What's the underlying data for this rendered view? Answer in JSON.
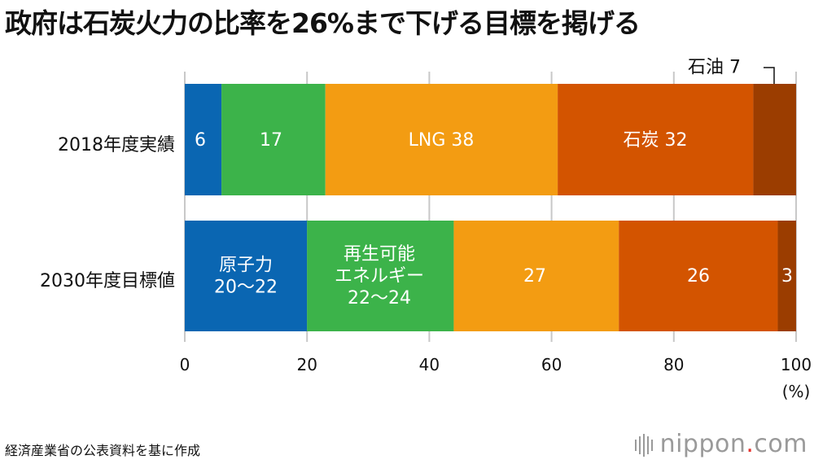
{
  "title": "政府は石炭火力の比率を26%まで下げる目標を掲げる",
  "source_note": "経済産業省の公表資料を基に作成",
  "brand": {
    "name": "nippon",
    "dot": ".",
    "tld": "com"
  },
  "colors": {
    "renewable_nuclear": "#0a66b2",
    "renewable": "#3cb34a",
    "lng": "#f39c12",
    "coal": "#d35400",
    "oil": "#9b3d00"
  },
  "chart_data": {
    "type": "bar",
    "orientation": "horizontal",
    "stacked": true,
    "title": "政府は石炭火力の比率を26%まで下げる目標を掲げる",
    "xlabel": "(%)",
    "xlim": [
      0,
      100
    ],
    "x_ticks": [
      "0",
      "20",
      "40",
      "60",
      "80",
      "100"
    ],
    "grid": true,
    "categories": [
      "2018年度実績",
      "2030年度目標値"
    ],
    "series": [
      {
        "name": "原子力",
        "values": [
          6,
          20
        ],
        "labels": [
          "6",
          "原子力\n20～22"
        ]
      },
      {
        "name": "再生可能エネルギー",
        "values": [
          17,
          24
        ],
        "labels": [
          "17",
          "再生可能\nエネルギー\n22～24"
        ]
      },
      {
        "name": "LNG",
        "values": [
          38,
          27
        ],
        "labels": [
          "LNG 38",
          "27"
        ]
      },
      {
        "name": "石炭",
        "values": [
          32,
          26
        ],
        "labels": [
          "石炭 32",
          "26"
        ]
      },
      {
        "name": "石油",
        "values": [
          7,
          3
        ],
        "labels": [
          "7",
          "3"
        ]
      }
    ],
    "annotation": {
      "text": "石油",
      "value": "7"
    }
  }
}
